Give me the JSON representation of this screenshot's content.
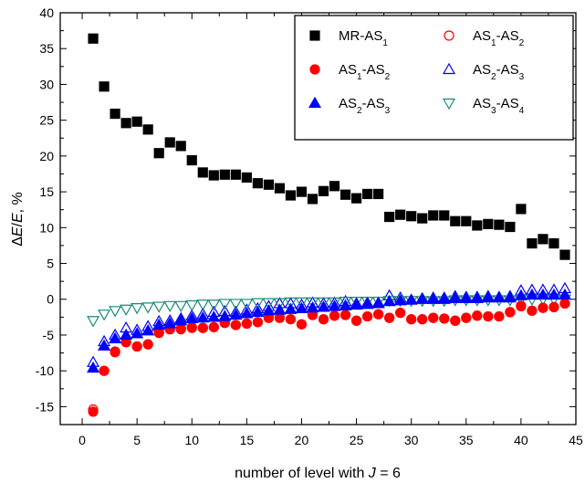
{
  "chart_data": {
    "type": "scatter",
    "title": "",
    "xlabel_parts": [
      {
        "text": "number of level with ",
        "style": "normal"
      },
      {
        "text": "J",
        "style": "italic"
      },
      {
        "text": " = 6",
        "style": "normal"
      }
    ],
    "ylabel_parts": [
      {
        "text": "Δ",
        "style": "normal"
      },
      {
        "text": "E",
        "style": "italic"
      },
      {
        "text": "/",
        "style": "normal"
      },
      {
        "text": "E",
        "style": "italic"
      },
      {
        "text": ", %",
        "style": "normal"
      }
    ],
    "xlim": [
      -2,
      45
    ],
    "ylim": [
      -17.5,
      40
    ],
    "xticks": [
      0,
      5,
      10,
      15,
      20,
      25,
      30,
      35,
      40,
      45
    ],
    "yticks": [
      -15,
      -10,
      -5,
      0,
      5,
      10,
      15,
      20,
      25,
      30,
      35,
      40
    ],
    "legend_position": "top-right",
    "series": [
      {
        "name_parts": [
          {
            "t": "MR-AS"
          },
          {
            "t": "1",
            "sub": true
          }
        ],
        "marker": "square",
        "filled": true,
        "color": "#000000",
        "x": [
          1,
          2,
          3,
          4,
          5,
          6,
          7,
          8,
          9,
          10,
          11,
          12,
          13,
          14,
          15,
          16,
          17,
          18,
          19,
          20,
          21,
          22,
          23,
          24,
          25,
          26,
          27,
          28,
          29,
          30,
          31,
          32,
          33,
          34,
          35,
          36,
          37,
          38,
          39,
          40,
          41,
          42,
          43,
          44
        ],
        "y": [
          36.4,
          29.7,
          25.9,
          24.6,
          24.8,
          23.7,
          20.4,
          21.9,
          21.4,
          19.4,
          17.7,
          17.3,
          17.4,
          17.4,
          17.0,
          16.2,
          16.0,
          15.5,
          14.5,
          15.0,
          14.0,
          15.1,
          15.8,
          14.6,
          14.1,
          14.7,
          14.7,
          11.5,
          11.8,
          11.6,
          11.3,
          11.7,
          11.7,
          10.9,
          10.9,
          10.3,
          10.5,
          10.4,
          10.1,
          12.6,
          7.8,
          8.4,
          7.8,
          6.2
        ]
      },
      {
        "name_parts": [
          {
            "t": "AS"
          },
          {
            "t": "1",
            "sub": true
          },
          {
            "t": "-AS"
          },
          {
            "t": "2",
            "sub": true
          }
        ],
        "marker": "circle",
        "filled": true,
        "color": "#ff0000",
        "x": [
          1,
          2,
          3,
          4,
          5,
          6,
          7,
          8,
          9,
          10,
          11,
          12,
          13,
          14,
          15,
          16,
          17,
          18,
          19,
          20,
          21,
          22,
          23,
          24,
          25,
          26,
          27,
          28,
          29,
          30,
          31,
          32,
          33,
          34,
          35,
          36,
          37,
          38,
          39,
          40,
          41,
          42,
          43,
          44
        ],
        "y": [
          -15.7,
          -10.0,
          -7.3,
          -6.0,
          -6.6,
          -6.3,
          -4.6,
          -4.2,
          -4.1,
          -3.9,
          -4.0,
          -3.9,
          -3.3,
          -3.6,
          -3.4,
          -3.2,
          -2.6,
          -2.6,
          -2.8,
          -3.5,
          -2.2,
          -2.8,
          -2.3,
          -2.2,
          -3.0,
          -2.4,
          -2.1,
          -2.6,
          -1.9,
          -2.8,
          -2.8,
          -2.6,
          -2.7,
          -3.0,
          -2.6,
          -2.3,
          -2.4,
          -2.4,
          -1.8,
          -1.0,
          -1.6,
          -1.2,
          -1.1,
          -0.6
        ]
      },
      {
        "name_parts": [
          {
            "t": "AS"
          },
          {
            "t": "2",
            "sub": true
          },
          {
            "t": "-AS"
          },
          {
            "t": "3",
            "sub": true
          }
        ],
        "marker": "triangle-up",
        "filled": true,
        "color": "#0000ff",
        "x": [
          1,
          2,
          3,
          4,
          5,
          6,
          7,
          8,
          9,
          10,
          11,
          12,
          13,
          14,
          15,
          16,
          17,
          18,
          19,
          20,
          21,
          22,
          23,
          24,
          25,
          26,
          27,
          28,
          29,
          30,
          31,
          32,
          33,
          34,
          35,
          36,
          37,
          38,
          39,
          40,
          41,
          42,
          43,
          44
        ],
        "y": [
          -9.6,
          -6.5,
          -5.5,
          -5.0,
          -4.8,
          -4.4,
          -3.6,
          -3.4,
          -3.0,
          -2.7,
          -2.6,
          -2.5,
          -2.4,
          -2.2,
          -2.0,
          -1.8,
          -1.6,
          -1.5,
          -1.4,
          -1.3,
          -1.2,
          -1.1,
          -1.0,
          -0.9,
          -0.8,
          -0.7,
          -0.6,
          -0.3,
          -0.2,
          -0.1,
          0.0,
          0.0,
          0.0,
          0.1,
          0.1,
          0.1,
          0.2,
          0.2,
          0.2,
          0.5,
          0.6,
          0.6,
          0.6,
          0.6
        ]
      },
      {
        "name_parts": [
          {
            "t": "AS"
          },
          {
            "t": "1",
            "sub": true
          },
          {
            "t": "-AS"
          },
          {
            "t": "2",
            "sub": true
          }
        ],
        "marker": "circle",
        "filled": false,
        "color": "#ff0000",
        "x": [
          1,
          2,
          3,
          4,
          5,
          6,
          7,
          8,
          9,
          10,
          11,
          12,
          13,
          14,
          15,
          16,
          17,
          18,
          19,
          20,
          21,
          22,
          23,
          24,
          25,
          26,
          27,
          28,
          29,
          30,
          31,
          32,
          33,
          34,
          35,
          36,
          37,
          38,
          39,
          40,
          41,
          42,
          43,
          44
        ],
        "y": [
          -15.4,
          -10.0,
          -7.4,
          -6.0,
          -6.6,
          -6.3,
          -4.7,
          -4.2,
          -4.2,
          -4.0,
          -4.0,
          -3.9,
          -3.3,
          -3.6,
          -3.4,
          -3.2,
          -2.6,
          -2.6,
          -2.8,
          -3.5,
          -2.2,
          -2.8,
          -2.3,
          -2.2,
          -3.0,
          -2.4,
          -2.1,
          -2.6,
          -1.9,
          -2.8,
          -2.8,
          -2.6,
          -2.7,
          -3.0,
          -2.6,
          -2.3,
          -2.4,
          -2.4,
          -1.8,
          -0.9,
          -1.6,
          -1.2,
          -1.1,
          -0.6
        ]
      },
      {
        "name_parts": [
          {
            "t": "AS"
          },
          {
            "t": "2",
            "sub": true
          },
          {
            "t": "-AS"
          },
          {
            "t": "3",
            "sub": true
          }
        ],
        "marker": "triangle-up",
        "filled": false,
        "color": "#0000ff",
        "x": [
          1,
          2,
          3,
          4,
          5,
          6,
          7,
          8,
          9,
          10,
          11,
          12,
          13,
          14,
          15,
          16,
          17,
          18,
          19,
          20,
          21,
          22,
          23,
          24,
          25,
          26,
          27,
          28,
          29,
          30,
          31,
          32,
          33,
          34,
          35,
          36,
          37,
          38,
          39,
          40,
          41,
          42,
          43,
          44
        ],
        "y": [
          -8.8,
          -5.9,
          -5.0,
          -4.0,
          -4.3,
          -3.8,
          -3.1,
          -3.0,
          -2.7,
          -2.3,
          -2.1,
          -1.8,
          -1.7,
          -1.8,
          -1.5,
          -1.3,
          -1.0,
          -0.6,
          -0.6,
          -0.8,
          -0.5,
          -0.6,
          -0.5,
          -0.3,
          -0.6,
          -0.5,
          -0.5,
          0.5,
          0.2,
          -0.1,
          0.1,
          0.2,
          0.2,
          0.4,
          0.3,
          0.3,
          0.4,
          0.3,
          0.4,
          1.2,
          1.3,
          1.3,
          1.3,
          1.5
        ]
      },
      {
        "name_parts": [
          {
            "t": "AS"
          },
          {
            "t": "3",
            "sub": true
          },
          {
            "t": "-AS"
          },
          {
            "t": "4",
            "sub": true
          }
        ],
        "marker": "triangle-down",
        "filled": false,
        "color": "#1a8a7a",
        "x": [
          1,
          2,
          3,
          4,
          5,
          6,
          7,
          8,
          9,
          10,
          11,
          12,
          13,
          14,
          15,
          16,
          17,
          18,
          19,
          20,
          21,
          22,
          23,
          24,
          25,
          26,
          27,
          28,
          29,
          30,
          31,
          32,
          33,
          34,
          35,
          36,
          37,
          38,
          39,
          40,
          41,
          42,
          43,
          44
        ],
        "y": [
          -3.0,
          -2.1,
          -1.6,
          -1.4,
          -1.2,
          -1.1,
          -1.0,
          -0.9,
          -0.9,
          -0.8,
          -0.7,
          -0.7,
          -0.6,
          -0.6,
          -0.6,
          -0.5,
          -0.5,
          -0.5,
          -0.4,
          -0.4,
          -0.4,
          -0.4,
          -0.4,
          -0.3,
          -0.3,
          -0.3,
          -0.3,
          -0.2,
          -0.2,
          -0.2,
          -0.2,
          -0.2,
          -0.2,
          -0.1,
          -0.1,
          -0.1,
          -0.1,
          -0.1,
          -0.1,
          0.0,
          0.0,
          0.0,
          0.0,
          0.0
        ]
      }
    ]
  }
}
